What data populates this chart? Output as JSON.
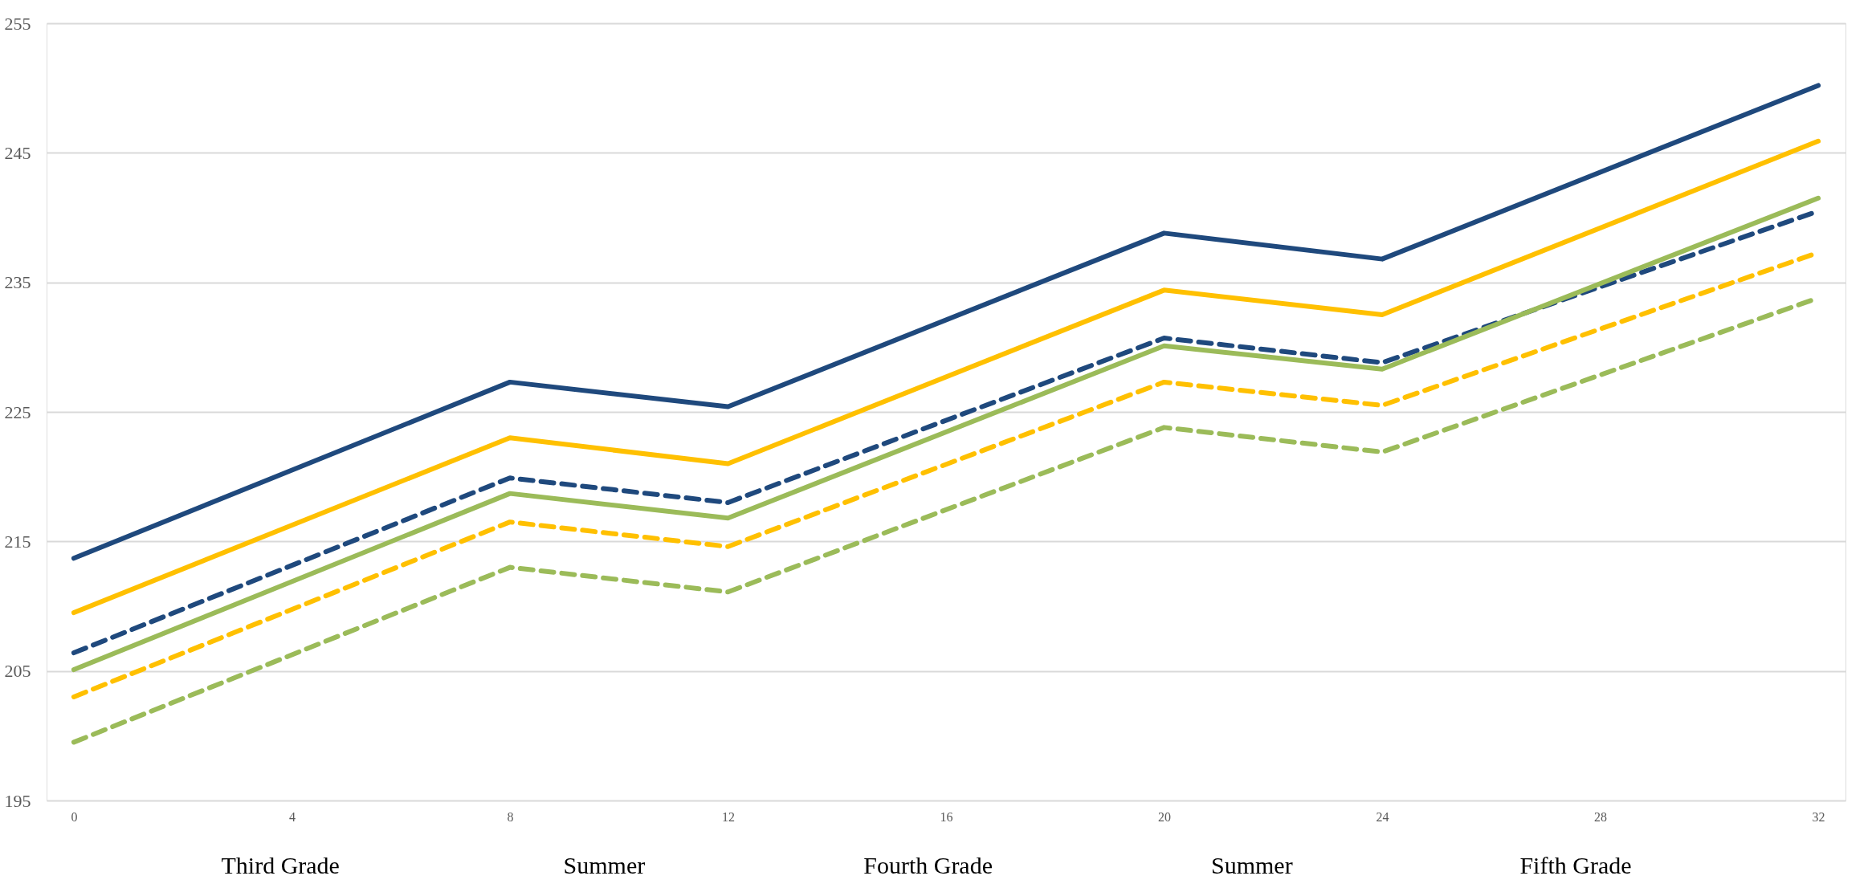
{
  "chart_data": {
    "type": "line",
    "x": [
      0,
      8,
      12,
      20,
      24,
      32
    ],
    "series": [
      {
        "color": "#1f497d",
        "line_style": "solid",
        "values": [
          213.7,
          227.3,
          225.4,
          238.8,
          236.8,
          250.2
        ]
      },
      {
        "color": "#ffc000",
        "line_style": "solid",
        "values": [
          209.5,
          223.0,
          221.0,
          234.4,
          232.5,
          245.9
        ]
      },
      {
        "color": "#1f497d",
        "line_style": "dashed",
        "values": [
          206.4,
          219.9,
          218.0,
          230.7,
          228.8,
          240.5
        ]
      },
      {
        "color": "#9bbb59",
        "line_style": "solid",
        "values": [
          205.1,
          218.7,
          216.8,
          230.1,
          228.3,
          241.5
        ]
      },
      {
        "color": "#ffc000",
        "line_style": "dashed",
        "values": [
          203.0,
          216.5,
          214.6,
          227.3,
          225.5,
          237.3
        ]
      },
      {
        "color": "#9bbb59",
        "line_style": "dashed",
        "values": [
          199.5,
          213.0,
          211.1,
          223.8,
          221.9,
          233.8
        ]
      }
    ],
    "xlim": [
      -0.5,
      32.5
    ],
    "xticks": [
      0,
      4,
      8,
      12,
      16,
      20,
      24,
      28,
      32
    ],
    "ylim": [
      195,
      255
    ],
    "yticks": [
      195,
      205,
      215,
      225,
      235,
      245,
      255
    ],
    "grid": "y",
    "marker": "none",
    "annotations": [
      "Third Grade",
      "Summer",
      "Fourth Grade",
      "Summer",
      "Fifth Grade"
    ]
  }
}
